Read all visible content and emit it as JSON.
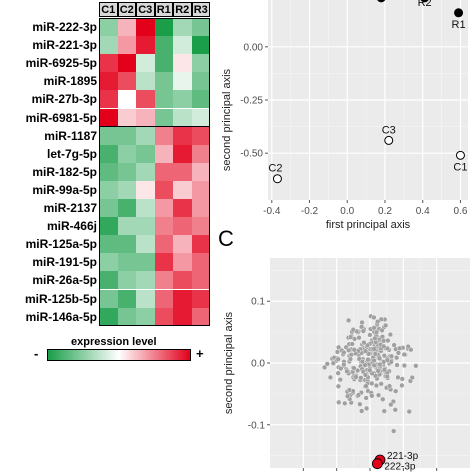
{
  "heatmap": {
    "columns": [
      "C1",
      "C2",
      "C3",
      "R1",
      "R2",
      "R3"
    ],
    "rows": [
      {
        "label": "miR-222-3p",
        "values": [
          -0.5,
          0.3,
          1.0,
          -1.0,
          -0.4,
          -0.6
        ]
      },
      {
        "label": "miR-221-3p",
        "values": [
          -0.4,
          0.4,
          0.9,
          -0.8,
          -0.2,
          -1.0
        ]
      },
      {
        "label": "miR-6925-5p",
        "values": [
          0.8,
          1.0,
          -0.2,
          -0.8,
          0.1,
          -0.5
        ]
      },
      {
        "label": "miR-1895",
        "values": [
          0.9,
          0.7,
          -0.3,
          -0.6,
          -0.1,
          -0.6
        ]
      },
      {
        "label": "miR-27b-3p",
        "values": [
          0.8,
          0.0,
          0.7,
          -0.6,
          -0.5,
          -0.7
        ]
      },
      {
        "label": "miR-6981-5p",
        "values": [
          1.0,
          0.2,
          0.3,
          -0.6,
          -0.3,
          -0.2
        ]
      },
      {
        "label": "miR-1187",
        "values": [
          -0.6,
          -0.6,
          -0.4,
          0.5,
          0.8,
          0.7
        ]
      },
      {
        "label": "let-7g-5p",
        "values": [
          -0.8,
          -0.5,
          -0.6,
          0.3,
          0.9,
          0.5
        ]
      },
      {
        "label": "miR-182-5p",
        "values": [
          -0.7,
          -0.6,
          -0.4,
          0.6,
          0.6,
          0.3
        ]
      },
      {
        "label": "miR-99a-5p",
        "values": [
          -0.5,
          -0.4,
          0.1,
          0.7,
          0.2,
          0.4
        ]
      },
      {
        "label": "miR-2137",
        "values": [
          -0.6,
          -0.8,
          -0.3,
          0.4,
          0.8,
          0.4
        ]
      },
      {
        "label": "miR-466j",
        "values": [
          -0.9,
          -0.4,
          -0.4,
          0.5,
          0.6,
          0.5
        ]
      },
      {
        "label": "miR-125a-5p",
        "values": [
          -0.7,
          -0.7,
          -0.3,
          0.6,
          0.3,
          0.8
        ]
      },
      {
        "label": "miR-191-5p",
        "values": [
          -0.5,
          -0.6,
          -0.6,
          0.8,
          0.4,
          0.6
        ]
      },
      {
        "label": "miR-26a-5p",
        "values": [
          -0.8,
          -0.5,
          -0.4,
          0.5,
          0.7,
          0.6
        ]
      },
      {
        "label": "miR-125b-5p",
        "values": [
          -0.6,
          -0.8,
          -0.3,
          0.6,
          0.9,
          0.8
        ]
      },
      {
        "label": "miR-146a-5p",
        "values": [
          -0.9,
          -0.6,
          -0.5,
          0.7,
          0.9,
          0.6
        ]
      }
    ],
    "legend_title": "expression level",
    "legend_min_symbol": "-",
    "legend_max_symbol": "+",
    "colors": {
      "low": "#1a9e4a",
      "mid": "#ffffff",
      "high": "#e3001b"
    }
  },
  "panel_c_letter": "C",
  "chart_data": [
    {
      "type": "scatter",
      "xlabel": "first principal axis",
      "ylabel": "second principal axis",
      "xlim": [
        -0.42,
        0.64
      ],
      "ylim": [
        -0.72,
        0.22
      ],
      "xticks": [
        -0.4,
        -0.2,
        0.0,
        0.2,
        0.4,
        0.6
      ],
      "xtick_labels": [
        "-0.4",
        "-0.2",
        "0.0",
        "0.2",
        "0.4",
        "0.6"
      ],
      "yticks": [
        0.0,
        -0.25,
        -0.5
      ],
      "ytick_labels": [
        "0.00",
        "-0.25",
        "-0.50"
      ],
      "grid": true,
      "points": [
        {
          "label": "R1",
          "x": 0.59,
          "y": 0.16,
          "filled": true
        },
        {
          "label": "R2",
          "x": 0.41,
          "y": 0.23,
          "filled": true
        },
        {
          "label": "R3",
          "x": 0.18,
          "y": 0.23,
          "filled": true
        },
        {
          "label": "C3",
          "x": 0.22,
          "y": -0.44,
          "filled": false
        },
        {
          "label": "C2",
          "x": -0.37,
          "y": -0.62,
          "filled": false
        },
        {
          "label": "C1",
          "x": 0.6,
          "y": -0.51,
          "filled": false
        }
      ],
      "visible_point_labels": [
        "R2",
        "R1",
        "C3",
        "C2",
        "C1"
      ]
    },
    {
      "type": "scatter",
      "xlabel": "",
      "ylabel": "second principal axis",
      "xlim": [
        -0.15,
        0.15
      ],
      "ylim": [
        -0.17,
        0.17
      ],
      "yticks": [
        0.1,
        0.0,
        -0.1
      ],
      "ytick_labels": [
        "0.1",
        "0.0",
        "-0.1"
      ],
      "grid": true,
      "point_color": "#a0a0a0",
      "n_points": 280,
      "highlighted": [
        {
          "label": "221-3p",
          "x": 0.015,
          "y": -0.157,
          "color": "#e3001b"
        },
        {
          "label": "222-3p",
          "x": 0.011,
          "y": -0.163,
          "color": "#e3001b"
        }
      ]
    }
  ]
}
